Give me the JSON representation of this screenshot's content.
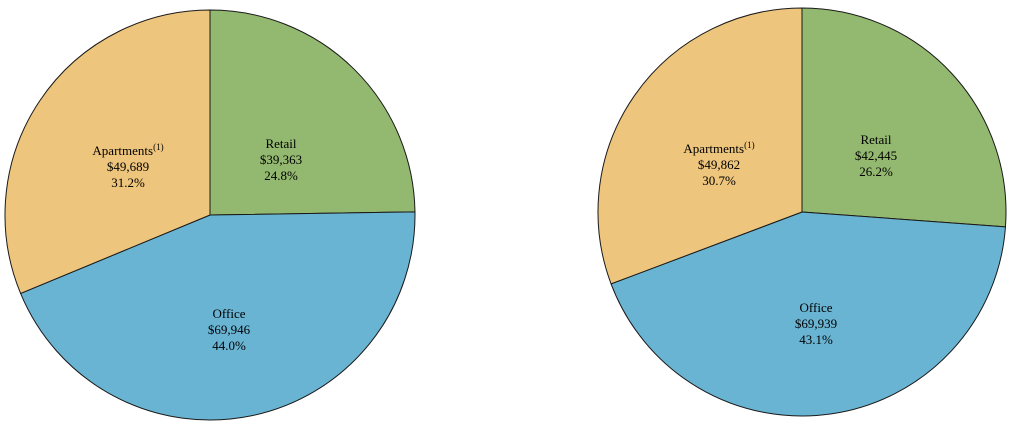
{
  "chart_data": [
    {
      "type": "pie",
      "title": "",
      "slices": [
        {
          "name": "Retail",
          "sup": "",
          "value_label": "$39,363",
          "percent_label": "24.8%",
          "value": 39363,
          "percent": 24.8,
          "color": "#93b86f"
        },
        {
          "name": "Office",
          "sup": "",
          "value_label": "$69,946",
          "percent_label": "44.0%",
          "value": 69946,
          "percent": 44.0,
          "color": "#6ab4d3"
        },
        {
          "name": "Apartments",
          "sup": "(1)",
          "value_label": "$49,689",
          "percent_label": "31.2%",
          "value": 49689,
          "percent": 31.2,
          "color": "#eec57c"
        }
      ]
    },
    {
      "type": "pie",
      "title": "",
      "slices": [
        {
          "name": "Retail",
          "sup": "",
          "value_label": "$42,445",
          "percent_label": "26.2%",
          "value": 42445,
          "percent": 26.2,
          "color": "#93b86f"
        },
        {
          "name": "Office",
          "sup": "",
          "value_label": "$69,939",
          "percent_label": "43.1%",
          "value": 69939,
          "percent": 43.1,
          "color": "#6ab4d3"
        },
        {
          "name": "Apartments",
          "sup": "(1)",
          "value_label": "$49,862",
          "percent_label": "30.7%",
          "value": 49862,
          "percent": 30.7,
          "color": "#eec57c"
        }
      ]
    }
  ]
}
